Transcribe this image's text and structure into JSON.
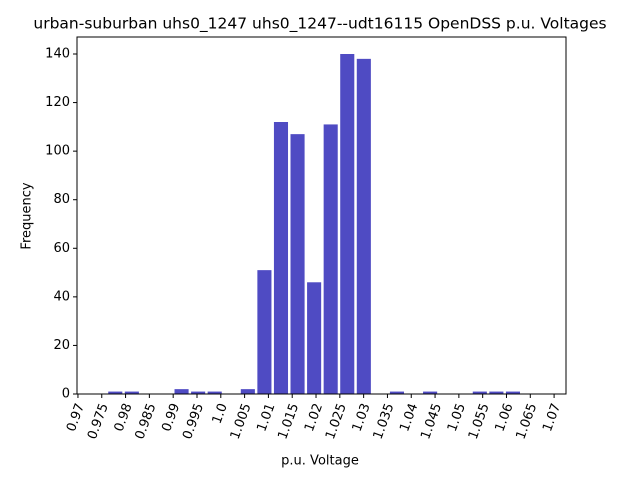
{
  "chart_data": {
    "type": "histogram",
    "title": "urban-suburban uhs0_1247 uhs0_1247--udt16115 OpenDSS p.u. Voltages",
    "x_label": "p.u. Voltage",
    "y_label": "Frequency",
    "bins": [
      0.9761,
      0.97958,
      0.98306,
      0.98654,
      0.99002,
      0.9935,
      0.99698,
      1.00046,
      1.00394,
      1.00742,
      1.0109,
      1.01438,
      1.01786,
      1.02134,
      1.02482,
      1.0283,
      1.03178,
      1.03526,
      1.03874,
      1.04222,
      1.0457,
      1.04918,
      1.05266,
      1.05614,
      1.05962,
      1.0631
    ],
    "counts": [
      1,
      1,
      0,
      0,
      2,
      1,
      1,
      0,
      2,
      51,
      112,
      107,
      46,
      111,
      140,
      138,
      0,
      1,
      0,
      1,
      0,
      0,
      1,
      1,
      1
    ],
    "color": "#4f4bc3",
    "xlim": [
      0.9698,
      1.0725
    ],
    "xticks": [
      0.97,
      0.975,
      0.98,
      0.985,
      0.99,
      0.995,
      {
        "value": 1,
        "label": "1.0"
      },
      1.005,
      1.01,
      1.015,
      1.02,
      1.025,
      1.03,
      1.035,
      1.04,
      1.045,
      1.05,
      1.055,
      1.06,
      1.065,
      1.07
    ],
    "ylim": [
      0,
      147
    ],
    "yticks": [
      0,
      20,
      40,
      60,
      80,
      100,
      120,
      140
    ]
  }
}
